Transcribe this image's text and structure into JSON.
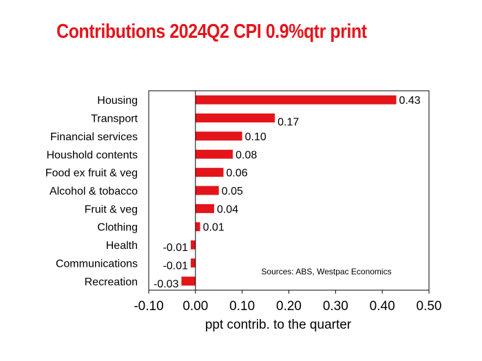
{
  "title": "Contributions 2024Q2 CPI 0.9%qtr print",
  "colors": {
    "title": "#e4141b",
    "bar": "#e4141b",
    "axis": "#000000"
  },
  "chart_data": {
    "type": "bar",
    "orientation": "horizontal",
    "categories": [
      "Housing",
      "Transport",
      "Financial services",
      "Houshold contents",
      "Food ex fruit & veg",
      "Alcohol & tobacco",
      "Fruit & veg",
      "Clothing",
      "Health",
      "Communications",
      "Recreation"
    ],
    "values": [
      0.43,
      0.17,
      0.1,
      0.08,
      0.06,
      0.05,
      0.04,
      0.01,
      -0.01,
      -0.01,
      -0.03
    ],
    "value_labels": [
      "0.43",
      "0.17",
      "0.10",
      "0.08",
      "0.06",
      "0.05",
      "0.04",
      "0.01",
      "-0.01",
      "-0.01",
      "-0.03"
    ],
    "xlabel": "ppt contrib. to the quarter",
    "xlim": [
      -0.1,
      0.5
    ],
    "xticks": [
      "-0.10",
      "0.00",
      "0.10",
      "0.20",
      "0.30",
      "0.40",
      "0.50"
    ],
    "annotation": "Sources: ABS, Westpac Economics",
    "grid": false,
    "legend": "none"
  }
}
